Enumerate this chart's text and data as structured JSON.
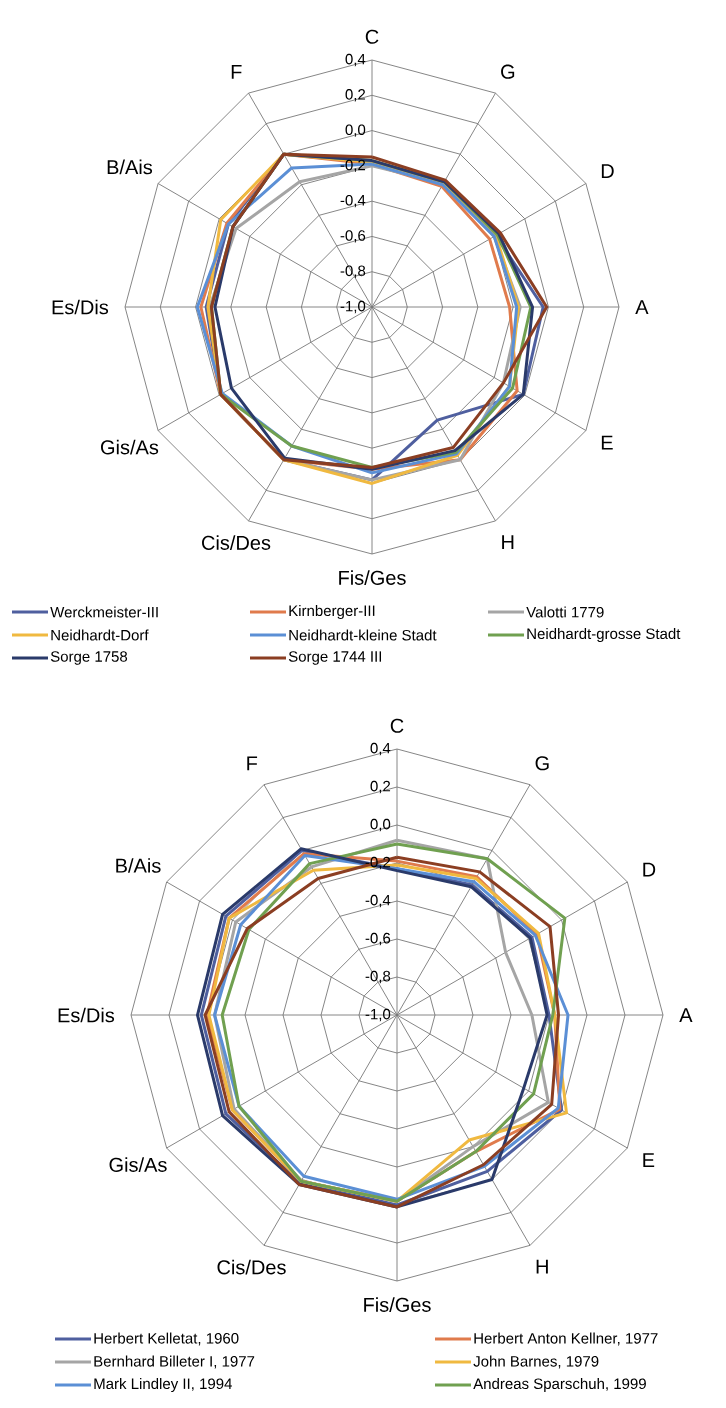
{
  "chart_data": [
    {
      "type": "radar",
      "categories": [
        "C",
        "G",
        "D",
        "A",
        "E",
        "H",
        "Fis/Ges",
        "Cis/Des",
        "Gis/As",
        "Es/Dis",
        "B/Ais",
        "F"
      ],
      "ylim": [
        -1.0,
        0.4
      ],
      "yticks": [
        {
          "value": -1.0,
          "label": "-1,0"
        },
        {
          "value": -0.8,
          "label": "-0,8"
        },
        {
          "value": -0.6,
          "label": "-0,6"
        },
        {
          "value": -0.4,
          "label": "-0,4"
        },
        {
          "value": -0.2,
          "label": "-0,2"
        },
        {
          "value": 0.0,
          "label": "0,0"
        },
        {
          "value": 0.2,
          "label": "0,2"
        },
        {
          "value": 0.4,
          "label": "0,4"
        }
      ],
      "grid": true,
      "legend": "bottom",
      "series": [
        {
          "name": "Werckmeister-III",
          "color": "#4f5f9f",
          "values": [
            -0.18,
            -0.2,
            -0.19,
            -0.03,
            -0.01,
            -0.26,
            -0.02,
            0.0,
            -0.01,
            -0.06,
            -0.06,
            0.0
          ]
        },
        {
          "name": "Kirnberger-III",
          "color": "#e07b4c",
          "values": [
            -0.19,
            -0.21,
            -0.23,
            -0.22,
            -0.05,
            0.0,
            -0.08,
            0.0,
            -0.01,
            -0.03,
            -0.05,
            0.0
          ]
        },
        {
          "name": "Valotti 1779",
          "color": "#a5a5a5",
          "values": [
            -0.2,
            -0.19,
            -0.2,
            -0.16,
            -0.14,
            0.0,
            -0.02,
            0.0,
            -0.01,
            -0.08,
            -0.11,
            -0.18
          ]
        },
        {
          "name": "Neidhardt-Dorf",
          "color": "#f0b940",
          "values": [
            -0.18,
            -0.19,
            -0.19,
            -0.17,
            -0.1,
            -0.03,
            0.0,
            0.0,
            -0.01,
            -0.07,
            -0.01,
            0.0
          ]
        },
        {
          "name": "Neidhardt-kleine Stadt",
          "color": "#5b8fd5",
          "values": [
            -0.19,
            -0.2,
            -0.2,
            -0.18,
            -0.1,
            -0.04,
            -0.06,
            -0.09,
            -0.02,
            -0.01,
            -0.06,
            -0.09
          ]
        },
        {
          "name": "Neidhardt-grosse Stadt",
          "color": "#70a050",
          "values": [
            -0.17,
            -0.18,
            -0.18,
            -0.1,
            -0.08,
            -0.05,
            -0.09,
            -0.09,
            -0.01,
            -0.09,
            -0.09,
            0.0
          ]
        },
        {
          "name": "Sorge 1758",
          "color": "#2a3a6a",
          "values": [
            -0.17,
            -0.18,
            -0.17,
            -0.09,
            -0.01,
            -0.06,
            -0.08,
            -0.01,
            -0.08,
            -0.11,
            -0.09,
            0.0
          ]
        },
        {
          "name": "Sorge 1744 III",
          "color": "#8b3e22",
          "values": [
            -0.15,
            -0.17,
            -0.16,
            -0.01,
            -0.14,
            -0.08,
            -0.09,
            0.0,
            -0.01,
            -0.09,
            -0.09,
            0.0
          ]
        }
      ]
    },
    {
      "type": "radar",
      "categories": [
        "C",
        "G",
        "D",
        "A",
        "E",
        "H",
        "Fis/Ges",
        "Cis/Des",
        "Gis/As",
        "Es/Dis",
        "B/Ais",
        "F"
      ],
      "ylim": [
        -1.0,
        0.4
      ],
      "yticks": [
        {
          "value": -1.0,
          "label": "-1,0"
        },
        {
          "value": -0.8,
          "label": "-0,8"
        },
        {
          "value": -0.6,
          "label": "-0,6"
        },
        {
          "value": -0.4,
          "label": "-0,4"
        },
        {
          "value": -0.2,
          "label": "-0,2"
        },
        {
          "value": 0.0,
          "label": "0,0"
        },
        {
          "value": 0.2,
          "label": "0,2"
        },
        {
          "value": 0.4,
          "label": "0,4"
        }
      ],
      "grid": true,
      "legend": "bottom",
      "series": [
        {
          "name": "Herbert Kelletat, 1960",
          "color": "#4f5f9f",
          "values": [
            -0.23,
            -0.21,
            -0.18,
            -0.2,
            0.0,
            -0.05,
            0.0,
            0.02,
            0.04,
            0.03,
            0.04,
            0.0
          ]
        },
        {
          "name": "Herbert Anton Kellner, 1977",
          "color": "#e07b4c",
          "values": [
            -0.19,
            -0.16,
            -0.15,
            -0.17,
            -0.01,
            -0.17,
            -0.02,
            0.01,
            0.0,
            0.0,
            0.02,
            -0.02
          ]
        },
        {
          "name": "Bernhard Billeter I, 1977",
          "color": "#a5a5a5",
          "values": [
            -0.08,
            -0.05,
            -0.34,
            -0.29,
            -0.08,
            -0.2,
            -0.02,
            0.01,
            -0.01,
            -0.04,
            -0.02,
            -0.1
          ]
        },
        {
          "name": "John Barnes, 1979",
          "color": "#f0b940",
          "values": [
            -0.21,
            -0.17,
            -0.14,
            -0.17,
            0.03,
            -0.24,
            -0.02,
            0.01,
            0.0,
            -0.01,
            0.02,
            -0.12
          ]
        },
        {
          "name": "Mark Lindley II, 1994",
          "color": "#5b8fd5",
          "values": [
            -0.23,
            -0.19,
            -0.16,
            -0.1,
            -0.02,
            -0.08,
            -0.03,
            -0.02,
            -0.04,
            -0.04,
            -0.05,
            -0.03
          ]
        },
        {
          "name": "Andreas Sparschuh, 1999",
          "color": "#70a050",
          "values": [
            -0.1,
            -0.05,
            0.02,
            -0.18,
            -0.17,
            -0.17,
            -0.02,
            0.01,
            -0.04,
            -0.08,
            -0.1,
            -0.08
          ]
        },
        {
          "color": "#2a3a6a",
          "values": [
            -0.24,
            -0.22,
            -0.19,
            -0.21,
            -0.23,
            0.0,
            0.01,
            0.03,
            0.06,
            0.05,
            0.06,
            0.01
          ]
        },
        {
          "color": "#8b3e22",
          "values": [
            -0.17,
            -0.13,
            -0.07,
            -0.15,
            -0.06,
            -0.09,
            0.01,
            0.03,
            0.02,
            0.01,
            -0.09,
            -0.17
          ]
        }
      ]
    }
  ]
}
